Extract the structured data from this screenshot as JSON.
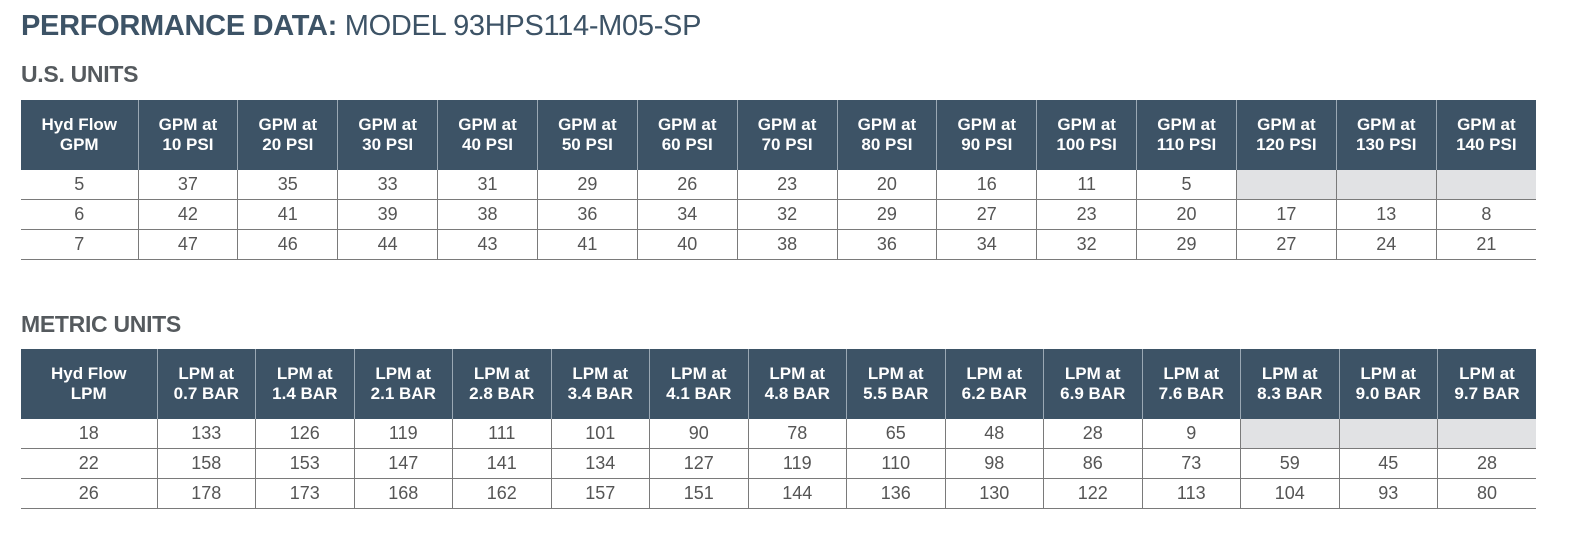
{
  "header": {
    "title_bold": "PERFORMANCE DATA:",
    "title_light": "MODEL 93HPS114-M05-SP"
  },
  "us_units": {
    "section_title": "U.S. UNITS",
    "columns": [
      [
        "Hyd Flow",
        "GPM"
      ],
      [
        "GPM at",
        "10 PSI"
      ],
      [
        "GPM at",
        "20 PSI"
      ],
      [
        "GPM at",
        "30 PSI"
      ],
      [
        "GPM at",
        "40 PSI"
      ],
      [
        "GPM at",
        "50 PSI"
      ],
      [
        "GPM at",
        "60 PSI"
      ],
      [
        "GPM at",
        "70 PSI"
      ],
      [
        "GPM at",
        "80 PSI"
      ],
      [
        "GPM at",
        "90 PSI"
      ],
      [
        "GPM at",
        "100 PSI"
      ],
      [
        "GPM at",
        "110 PSI"
      ],
      [
        "GPM at",
        "120 PSI"
      ],
      [
        "GPM at",
        "130 PSI"
      ],
      [
        "GPM at",
        "140 PSI"
      ]
    ],
    "rows": [
      [
        "5",
        "37",
        "35",
        "33",
        "31",
        "29",
        "26",
        "23",
        "20",
        "16",
        "11",
        "5",
        "",
        "",
        ""
      ],
      [
        "6",
        "42",
        "41",
        "39",
        "38",
        "36",
        "34",
        "32",
        "29",
        "27",
        "23",
        "20",
        "17",
        "13",
        "8"
      ],
      [
        "7",
        "47",
        "46",
        "44",
        "43",
        "41",
        "40",
        "38",
        "36",
        "34",
        "32",
        "29",
        "27",
        "24",
        "21"
      ]
    ]
  },
  "metric_units": {
    "section_title": "METRIC UNITS",
    "columns": [
      [
        "Hyd Flow",
        "LPM"
      ],
      [
        "LPM at",
        "0.7 BAR"
      ],
      [
        "LPM at",
        "1.4 BAR"
      ],
      [
        "LPM at",
        "2.1 BAR"
      ],
      [
        "LPM at",
        "2.8 BAR"
      ],
      [
        "LPM at",
        "3.4 BAR"
      ],
      [
        "LPM at",
        "4.1 BAR"
      ],
      [
        "LPM at",
        "4.8 BAR"
      ],
      [
        "LPM at",
        "5.5 BAR"
      ],
      [
        "LPM at",
        "6.2 BAR"
      ],
      [
        "LPM at",
        "6.9 BAR"
      ],
      [
        "LPM at",
        "7.6 BAR"
      ],
      [
        "LPM at",
        "8.3 BAR"
      ],
      [
        "LPM at",
        "9.0 BAR"
      ],
      [
        "LPM at",
        "9.7 BAR"
      ]
    ],
    "rows": [
      [
        "18",
        "133",
        "126",
        "119",
        "111",
        "101",
        "90",
        "78",
        "65",
        "48",
        "28",
        "9",
        "",
        "",
        ""
      ],
      [
        "22",
        "158",
        "153",
        "147",
        "141",
        "134",
        "127",
        "119",
        "110",
        "98",
        "86",
        "73",
        "59",
        "45",
        "28"
      ],
      [
        "26",
        "178",
        "173",
        "168",
        "162",
        "157",
        "151",
        "144",
        "136",
        "130",
        "122",
        "113",
        "104",
        "93",
        "80"
      ]
    ]
  },
  "colors": {
    "header_bg": "#3d5366",
    "title_color": "#3d5366",
    "empty_cell_bg": "#e1e2e4"
  }
}
